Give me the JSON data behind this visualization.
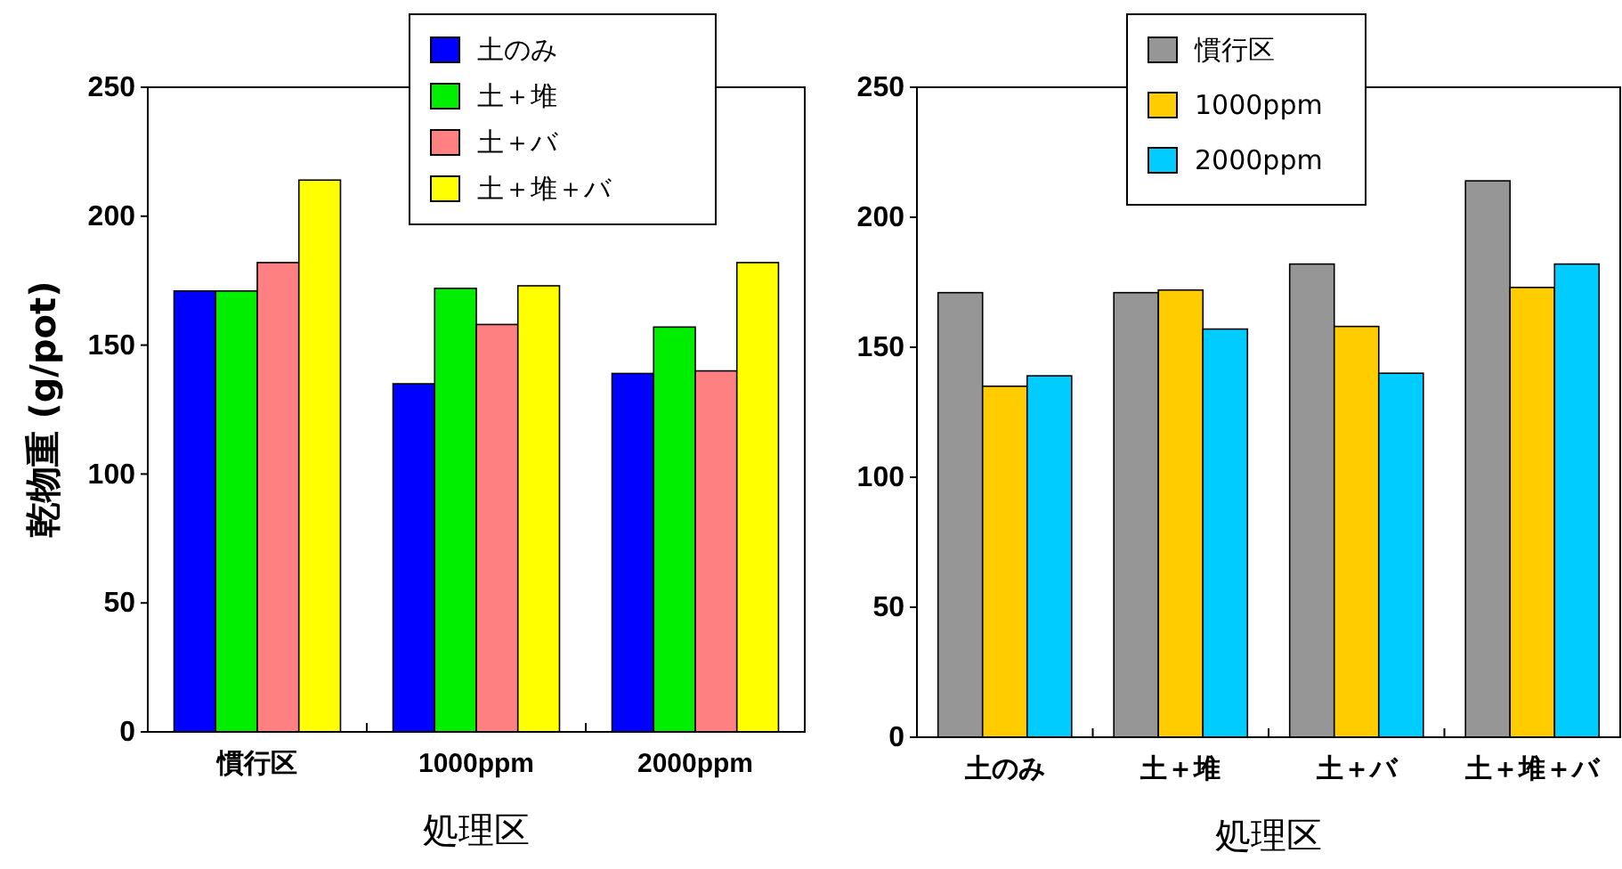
{
  "chart_data": [
    {
      "type": "bar",
      "categories": [
        "慣行区",
        "1000ppm",
        "2000ppm"
      ],
      "xlabel": "処理区",
      "ylabel": "乾物重 (g/pot)",
      "ylim": [
        0,
        250
      ],
      "yticks": [
        0,
        50,
        100,
        150,
        200,
        250
      ],
      "legend": "top",
      "series": [
        {
          "name": "土のみ",
          "color": "#0000ff",
          "values": [
            171,
            135,
            139
          ]
        },
        {
          "name": "土＋堆",
          "color": "#00ee00",
          "values": [
            171,
            172,
            157
          ]
        },
        {
          "name": "土＋バ",
          "color": "#ff8080",
          "values": [
            182,
            158,
            140
          ]
        },
        {
          "name": "土＋堆＋バ",
          "color": "#ffff00",
          "values": [
            214,
            173,
            182
          ]
        }
      ]
    },
    {
      "type": "bar",
      "categories": [
        "土のみ",
        "土＋堆",
        "土＋バ",
        "土＋堆＋バ"
      ],
      "xlabel": "処理区",
      "ylim": [
        0,
        250
      ],
      "yticks": [
        0,
        50,
        100,
        150,
        200,
        250
      ],
      "legend": "top",
      "series": [
        {
          "name": "慣行区",
          "color": "#969696",
          "values": [
            171,
            171,
            182,
            214
          ]
        },
        {
          "name": "1000ppm",
          "color": "#ffcc00",
          "values": [
            135,
            172,
            158,
            173
          ]
        },
        {
          "name": "2000ppm",
          "color": "#00ccff",
          "values": [
            139,
            157,
            140,
            182
          ]
        }
      ]
    }
  ]
}
